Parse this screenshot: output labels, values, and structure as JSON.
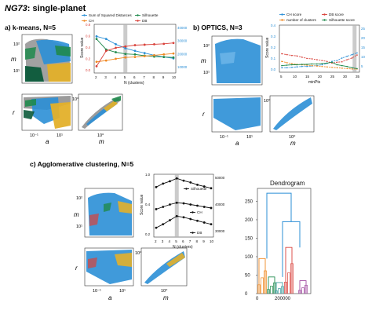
{
  "figure": {
    "title_main": "NG73",
    "title_rest": ": single-planet",
    "colors": {
      "blue": "#2b8fd6",
      "green": "#1f8a4c",
      "gray": "#8a8a8a",
      "yellow": "#e3b02a",
      "darkgreen": "#0b5a3a",
      "red": "#d9413a",
      "orange": "#f08a24",
      "teal": "#40a0a0"
    }
  },
  "panel_a": {
    "title": "a) k-means, N=5",
    "axis_m": "m",
    "axis_r": "r",
    "axis_a": "a",
    "ticks": {
      "y_top": "10²",
      "y_mid": "10¹",
      "y_r": "10⁰",
      "x_a1": "10⁻¹",
      "x_a2": "10¹",
      "x_m": "10⁰"
    }
  },
  "panel_b": {
    "title": "b) OPTICS, N=3",
    "axis_m": "m",
    "axis_r": "r",
    "axis_a": "a",
    "ticks": {
      "y_top": "10²",
      "y_mid": "10¹",
      "y_r": "10⁰",
      "x_a1": "10⁻¹",
      "x_a2": "10¹",
      "x_m": "10⁰"
    }
  },
  "panel_c": {
    "title": "c) Agglomerative clustering, N=5",
    "axis_m": "m",
    "axis_r": "r",
    "axis_a": "a",
    "ticks": {
      "y_top": "10²",
      "y_mid": "10¹",
      "y_r": "10⁰",
      "x_a1": "10⁻¹",
      "x_a2": "10¹",
      "x_m": "10⁰"
    }
  },
  "chart_data": [
    {
      "id": "kmeans-scores",
      "type": "line",
      "xlabel": "N (clusters)",
      "ylabel": "Score value",
      "x": [
        2,
        3,
        4,
        5,
        6,
        7,
        8,
        9,
        10
      ],
      "xticks": [
        "2",
        "3",
        "4",
        "5",
        "6",
        "7",
        "8",
        "9",
        "10"
      ],
      "yticks_left": [
        "0.0",
        "0.2",
        "0.4",
        "0.6",
        "0.8"
      ],
      "yticks_right": [
        "10000",
        "20000",
        "30000",
        "40000"
      ],
      "legend": [
        "Sum of Squared Distances",
        "Silhouette",
        "CH",
        "DB"
      ],
      "highlight_x": 5,
      "series": [
        {
          "name": "Sum of Squared Distances",
          "color": "#2b8fd6",
          "values": [
            0.78,
            0.72,
            0.6,
            0.51,
            0.45,
            0.4,
            0.35,
            0.31,
            0.28
          ]
        },
        {
          "name": "Silhouette",
          "color": "#1f8a4c",
          "values": [
            0.72,
            0.48,
            0.42,
            0.38,
            0.37,
            0.34,
            0.32,
            0.31,
            0.3
          ]
        },
        {
          "name": "CH",
          "color": "#f08a24",
          "values": [
            0.2,
            0.23,
            0.27,
            0.3,
            0.31,
            0.33,
            0.35,
            0.37,
            0.39
          ]
        },
        {
          "name": "DB",
          "color": "#d9413a",
          "values": [
            0.1,
            0.45,
            0.52,
            0.55,
            0.58,
            0.59,
            0.6,
            0.61,
            0.63
          ]
        }
      ]
    },
    {
      "id": "optics-scores",
      "type": "line",
      "xlabel": "minPts",
      "ylabel": "Score value",
      "x": [
        5,
        7,
        9,
        11,
        13,
        15,
        17,
        19,
        21,
        23,
        25,
        27,
        29,
        31,
        33,
        35
      ],
      "xticks": [
        "5",
        "10",
        "15",
        "20",
        "25",
        "30",
        "35"
      ],
      "yticks_left": [
        "0.0",
        "0.1",
        "0.2",
        "0.3",
        "0.4"
      ],
      "yticks_right": [
        "5",
        "10",
        "15",
        "20",
        "25"
      ],
      "legend": [
        "CH score",
        "DB score",
        "number of clusters",
        "Silhouette score"
      ],
      "highlight_x": 34,
      "series": [
        {
          "name": "CH score",
          "color": "#2b8fd6",
          "values": [
            0.05,
            0.05,
            0.06,
            0.07,
            0.08,
            0.08,
            0.09,
            0.1,
            0.12,
            0.15,
            0.2,
            0.22,
            0.28,
            0.32,
            0.36,
            0.4
          ]
        },
        {
          "name": "DB score",
          "color": "#d9413a",
          "values": [
            0.38,
            0.36,
            0.34,
            0.33,
            0.3,
            0.27,
            0.26,
            0.24,
            0.22,
            0.2,
            0.16,
            0.18,
            0.19,
            0.24,
            0.28,
            0.35
          ]
        },
        {
          "name": "number of clusters",
          "color": "#f08a24",
          "values": [
            0.2,
            0.17,
            0.15,
            0.13,
            0.12,
            0.11,
            0.1,
            0.09,
            0.08,
            0.07,
            0.06,
            0.05,
            0.04,
            0.03,
            0.02,
            0.02
          ]
        },
        {
          "name": "Silhouette score",
          "color": "#1f8a4c",
          "values": [
            0.1,
            0.11,
            0.12,
            0.12,
            0.13,
            0.13,
            0.14,
            0.14,
            0.15,
            0.16,
            0.18,
            0.12,
            0.1,
            0.08,
            0.05,
            0.03
          ]
        }
      ]
    },
    {
      "id": "agglomerative-scores",
      "type": "line",
      "xlabel": "N (clusters)",
      "ylabel": "Score value",
      "x": [
        2,
        3,
        4,
        5,
        6,
        7,
        8,
        9,
        10
      ],
      "xticks": [
        "2",
        "3",
        "4",
        "5",
        "6",
        "7",
        "8",
        "9",
        "10"
      ],
      "yticks_left": [
        "0.2",
        "0.4",
        "1.0"
      ],
      "yticks_right": [
        "30000",
        "40000",
        "50000"
      ],
      "legend": [
        "Silhouette",
        "CH",
        "DB"
      ],
      "highlight_x": 5,
      "series": [
        {
          "name": "Silhouette",
          "color": "#111111",
          "values": [
            0.82,
            0.88,
            0.92,
            0.97,
            0.93,
            0.9,
            0.86,
            0.83,
            0.8
          ]
        },
        {
          "name": "CH",
          "color": "#111111",
          "values": [
            0.44,
            0.48,
            0.52,
            0.55,
            0.54,
            0.52,
            0.5,
            0.48,
            0.46
          ]
        },
        {
          "name": "DB",
          "color": "#111111",
          "values": [
            0.12,
            0.18,
            0.25,
            0.32,
            0.3,
            0.27,
            0.24,
            0.21,
            0.18
          ]
        }
      ]
    },
    {
      "id": "dendrogram",
      "type": "dendrogram",
      "title": "Dendrogram",
      "yticks": [
        "0",
        "50",
        "100",
        "150",
        "200",
        "250"
      ],
      "xticks": [
        "0",
        "200000"
      ],
      "ylim": [
        0,
        285
      ],
      "clusters": [
        {
          "color": "#f08a24",
          "merge_height": 95
        },
        {
          "color": "#1f8a4c",
          "merge_height": 45
        },
        {
          "color": "#d9413a",
          "merge_height": 125
        },
        {
          "color": "#40a0a0",
          "merge_height": 30
        },
        {
          "color": "#a04aa0",
          "merge_height": 35
        }
      ],
      "links": [
        {
          "color": "#2b8fd6",
          "height": 272
        },
        {
          "color": "#2b8fd6",
          "height": 195
        }
      ]
    }
  ]
}
